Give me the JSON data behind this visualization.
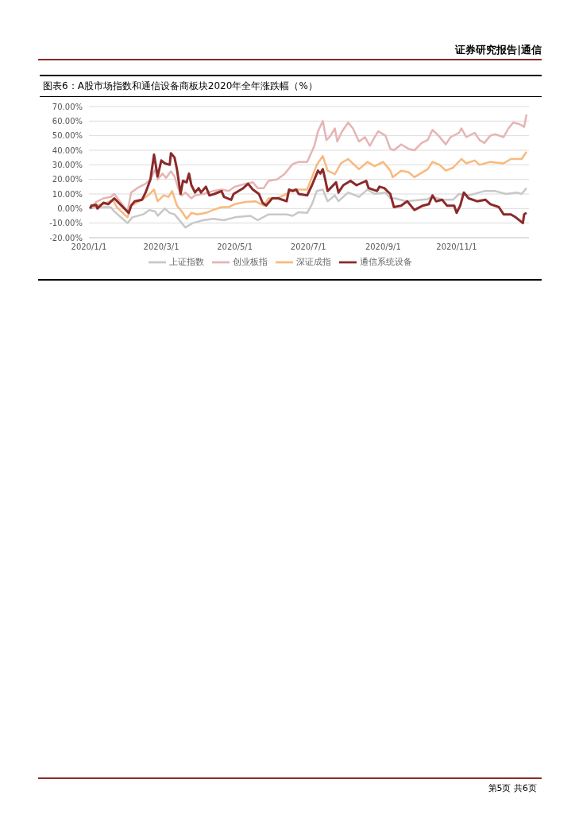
{
  "chart_data": {
    "type": "line",
    "title": "图表6：A股市场指数和通信设备商板块2020年全年涨跌幅（%）",
    "annotations": [
      "证券研究报告|通信",
      "第5页 共6页"
    ],
    "xlim": [
      "2020-01-01",
      "2020-12-31"
    ],
    "xticks": [
      {
        "value": "2020-01-01",
        "label": "2020/1/1"
      },
      {
        "value": "2020-03-01",
        "label": "2020/3/1"
      },
      {
        "value": "2020-05-01",
        "label": "2020/5/1"
      },
      {
        "value": "2020-07-01",
        "label": "2020/7/1"
      },
      {
        "value": "2020-09-01",
        "label": "2020/9/1"
      },
      {
        "value": "2020-11-01",
        "label": "2020/11/1"
      }
    ],
    "ylim": [
      -20,
      70
    ],
    "yticks": [
      {
        "value": -20,
        "label": "-20.00%"
      },
      {
        "value": -10,
        "label": "-10.00%"
      },
      {
        "value": 0,
        "label": "0.00%"
      },
      {
        "value": 10,
        "label": "10.00%"
      },
      {
        "value": 20,
        "label": "20.00%"
      },
      {
        "value": 30,
        "label": "30.00%"
      },
      {
        "value": 40,
        "label": "40.00%"
      },
      {
        "value": 50,
        "label": "50.00%"
      },
      {
        "value": 60,
        "label": "60.00%"
      },
      {
        "value": 70,
        "label": "70.00%"
      }
    ],
    "grid": "y",
    "legend": "bottom",
    "marker": "none",
    "line_style": "solid",
    "series": [
      {
        "name": "上证指数",
        "color": "#c8c8c8",
        "x": [
          "2020-01-02",
          "2020-01-07",
          "2020-01-19",
          "2020-01-22",
          "2020-02-02",
          "2020-02-06",
          "2020-02-15",
          "2020-02-20",
          "2020-02-25",
          "2020-02-27",
          "2020-03-04",
          "2020-03-08",
          "2020-03-12",
          "2020-03-18",
          "2020-03-21",
          "2020-03-27",
          "2020-04-05",
          "2020-04-13",
          "2020-04-22",
          "2020-05-01",
          "2020-05-14",
          "2020-05-20",
          "2020-05-29",
          "2020-06-05",
          "2020-06-13",
          "2020-06-18",
          "2020-06-23",
          "2020-06-30",
          "2020-07-04",
          "2020-07-08",
          "2020-07-13",
          "2020-07-17",
          "2020-07-23",
          "2020-07-26",
          "2020-08-03",
          "2020-08-12",
          "2020-08-19",
          "2020-08-25",
          "2020-09-03",
          "2020-09-07",
          "2020-09-11",
          "2020-09-20",
          "2020-10-08",
          "2020-10-12",
          "2020-10-21",
          "2020-10-29",
          "2020-11-03",
          "2020-11-11",
          "2020-11-24",
          "2020-12-03",
          "2020-12-12",
          "2020-12-21",
          "2020-12-25",
          "2020-12-29"
        ],
        "values": [
          0,
          1,
          1,
          -2,
          -10,
          -6,
          -4,
          -1,
          -2,
          -5,
          0,
          -3,
          -4,
          -10,
          -13,
          -10,
          -8,
          -7,
          -8,
          -6,
          -5,
          -8,
          -4,
          -4,
          -4,
          -5,
          -2.5,
          -3,
          3,
          12,
          13,
          5,
          9,
          5,
          11,
          8,
          13,
          10,
          11,
          7,
          7,
          5,
          6.5,
          8,
          6,
          6,
          10,
          9,
          12,
          12,
          10,
          11,
          10,
          14
        ]
      },
      {
        "name": "深证成指",
        "color": "#f9b97e",
        "x": [
          "2020-01-02",
          "2020-01-07",
          "2020-01-13",
          "2020-01-21",
          "2020-01-24",
          "2020-02-02",
          "2020-02-05",
          "2020-02-14",
          "2020-02-19",
          "2020-02-24",
          "2020-02-27",
          "2020-03-03",
          "2020-03-07",
          "2020-03-10",
          "2020-03-14",
          "2020-03-18",
          "2020-03-22",
          "2020-03-26",
          "2020-03-31",
          "2020-04-07",
          "2020-04-13",
          "2020-04-20",
          "2020-04-26",
          "2020-05-01",
          "2020-05-10",
          "2020-05-18",
          "2020-05-25",
          "2020-05-29",
          "2020-06-05",
          "2020-06-13",
          "2020-06-18",
          "2020-06-23",
          "2020-06-30",
          "2020-07-08",
          "2020-07-13",
          "2020-07-17",
          "2020-07-23",
          "2020-07-28",
          "2020-08-03",
          "2020-08-12",
          "2020-08-19",
          "2020-08-25",
          "2020-09-01",
          "2020-09-07",
          "2020-09-09",
          "2020-09-16",
          "2020-09-22",
          "2020-09-27",
          "2020-10-08",
          "2020-10-12",
          "2020-10-18",
          "2020-10-23",
          "2020-10-29",
          "2020-11-05",
          "2020-11-09",
          "2020-11-16",
          "2020-11-20",
          "2020-11-29",
          "2020-12-10",
          "2020-12-16",
          "2020-12-25",
          "2020-12-29"
        ],
        "values": [
          0,
          2,
          3,
          6,
          1,
          -6,
          2,
          6,
          9,
          13,
          5,
          9,
          8,
          12,
          2,
          -2,
          -7,
          -3,
          -4,
          -3,
          -1,
          1,
          1,
          3,
          4.5,
          5,
          2,
          7,
          7,
          10,
          13,
          13,
          13,
          30,
          36,
          26,
          23.5,
          31,
          34,
          27,
          32,
          29,
          32,
          26,
          21.5,
          26,
          25,
          21.5,
          27,
          32,
          30,
          26,
          28,
          34,
          31,
          33,
          30,
          32,
          31,
          34,
          34,
          39
        ]
      },
      {
        "name": "创业板指",
        "color": "#e6b4b4",
        "x": [
          "2020-01-02",
          "2020-01-07",
          "2020-01-13",
          "2020-01-19",
          "2020-01-22",
          "2020-02-02",
          "2020-02-05",
          "2020-02-10",
          "2020-02-17",
          "2020-02-21",
          "2020-02-25",
          "2020-02-27",
          "2020-03-02",
          "2020-03-05",
          "2020-03-09",
          "2020-03-12",
          "2020-03-15",
          "2020-03-18",
          "2020-03-21",
          "2020-03-26",
          "2020-03-29",
          "2020-04-05",
          "2020-04-13",
          "2020-04-20",
          "2020-04-26",
          "2020-05-01",
          "2020-05-10",
          "2020-05-16",
          "2020-05-20",
          "2020-05-25",
          "2020-05-29",
          "2020-06-05",
          "2020-06-11",
          "2020-06-18",
          "2020-06-23",
          "2020-06-30",
          "2020-07-06",
          "2020-07-09",
          "2020-07-13",
          "2020-07-16",
          "2020-07-19",
          "2020-07-23",
          "2020-07-25",
          "2020-07-29",
          "2020-08-03",
          "2020-08-07",
          "2020-08-12",
          "2020-08-17",
          "2020-08-21",
          "2020-08-25",
          "2020-08-28",
          "2020-09-03",
          "2020-09-07",
          "2020-09-10",
          "2020-09-16",
          "2020-09-22",
          "2020-09-27",
          "2020-10-03",
          "2020-10-08",
          "2020-10-12",
          "2020-10-17",
          "2020-10-23",
          "2020-10-27",
          "2020-11-03",
          "2020-11-05",
          "2020-11-09",
          "2020-11-16",
          "2020-11-20",
          "2020-11-24",
          "2020-11-29",
          "2020-12-03",
          "2020-12-10",
          "2020-12-14",
          "2020-12-18",
          "2020-12-23",
          "2020-12-27",
          "2020-12-29"
        ],
        "values": [
          0,
          4.5,
          7,
          8,
          10,
          -2,
          11,
          14,
          17,
          20,
          27,
          20,
          24,
          21,
          25.5,
          22,
          14,
          9,
          11,
          7,
          9,
          10,
          12,
          13,
          12,
          15,
          17,
          18,
          14,
          14,
          19,
          20,
          23.5,
          30.5,
          32,
          32,
          43,
          53,
          60,
          47,
          49.5,
          55,
          46,
          53,
          59,
          55,
          46,
          49,
          43,
          49,
          53,
          50,
          41,
          40,
          44,
          41,
          40,
          45,
          47,
          54,
          50,
          44,
          49,
          52,
          55,
          49,
          52,
          47,
          45,
          50,
          51,
          49,
          55,
          59,
          58,
          56,
          64.5
        ]
      },
      {
        "name": "通信系统设备",
        "color": "#8b2a2a",
        "x": [
          "2020-01-02",
          "2020-01-03",
          "2020-01-07",
          "2020-01-08",
          "2020-01-13",
          "2020-01-17",
          "2020-01-22",
          "2020-02-03",
          "2020-02-05",
          "2020-02-08",
          "2020-02-14",
          "2020-02-17",
          "2020-02-21",
          "2020-02-24",
          "2020-02-27",
          "2020-03-01",
          "2020-03-04",
          "2020-03-08",
          "2020-03-09",
          "2020-03-12",
          "2020-03-14",
          "2020-03-17",
          "2020-03-19",
          "2020-03-22",
          "2020-03-24",
          "2020-03-26",
          "2020-03-29",
          "2020-04-01",
          "2020-04-03",
          "2020-04-07",
          "2020-04-10",
          "2020-04-14",
          "2020-04-20",
          "2020-04-22",
          "2020-04-28",
          "2020-04-30",
          "2020-05-08",
          "2020-05-12",
          "2020-05-16",
          "2020-05-21",
          "2020-05-24",
          "2020-05-27",
          "2020-06-01",
          "2020-06-06",
          "2020-06-13",
          "2020-06-15",
          "2020-06-18",
          "2020-06-21",
          "2020-06-23",
          "2020-06-30",
          "2020-07-04",
          "2020-07-09",
          "2020-07-11",
          "2020-07-13",
          "2020-07-15",
          "2020-07-17",
          "2020-07-24",
          "2020-07-26",
          "2020-07-30",
          "2020-08-05",
          "2020-08-10",
          "2020-08-18",
          "2020-08-20",
          "2020-08-27",
          "2020-08-29",
          "2020-09-02",
          "2020-09-07",
          "2020-09-10",
          "2020-09-16",
          "2020-09-21",
          "2020-09-27",
          "2020-10-04",
          "2020-10-09",
          "2020-10-12",
          "2020-10-15",
          "2020-10-20",
          "2020-10-24",
          "2020-10-30",
          "2020-11-01",
          "2020-11-04",
          "2020-11-07",
          "2020-11-11",
          "2020-11-18",
          "2020-11-25",
          "2020-11-29",
          "2020-12-06",
          "2020-12-10",
          "2020-12-16",
          "2020-12-20",
          "2020-12-26",
          "2020-12-27",
          "2020-12-29"
        ],
        "values": [
          0,
          2,
          2.5,
          0,
          4,
          3,
          7,
          -3,
          2,
          5,
          6,
          11,
          20,
          37,
          22,
          33,
          31,
          30,
          38,
          35,
          27,
          10,
          19,
          18,
          24,
          16,
          11,
          14,
          11,
          15,
          9,
          10,
          12,
          8,
          6,
          10,
          14,
          17,
          13,
          10,
          4,
          2,
          7,
          7,
          5,
          13,
          12,
          13,
          10,
          9,
          16,
          26,
          24,
          27,
          20,
          12,
          18,
          11,
          16,
          19,
          16,
          19,
          14,
          12,
          15,
          14,
          10,
          1,
          2,
          5,
          -1,
          2,
          3,
          9,
          5,
          6,
          2,
          2,
          -3,
          2,
          11,
          7,
          5,
          6,
          3,
          1,
          -4,
          -4,
          -6,
          -10,
          -4,
          -3
        ]
      }
    ]
  }
}
